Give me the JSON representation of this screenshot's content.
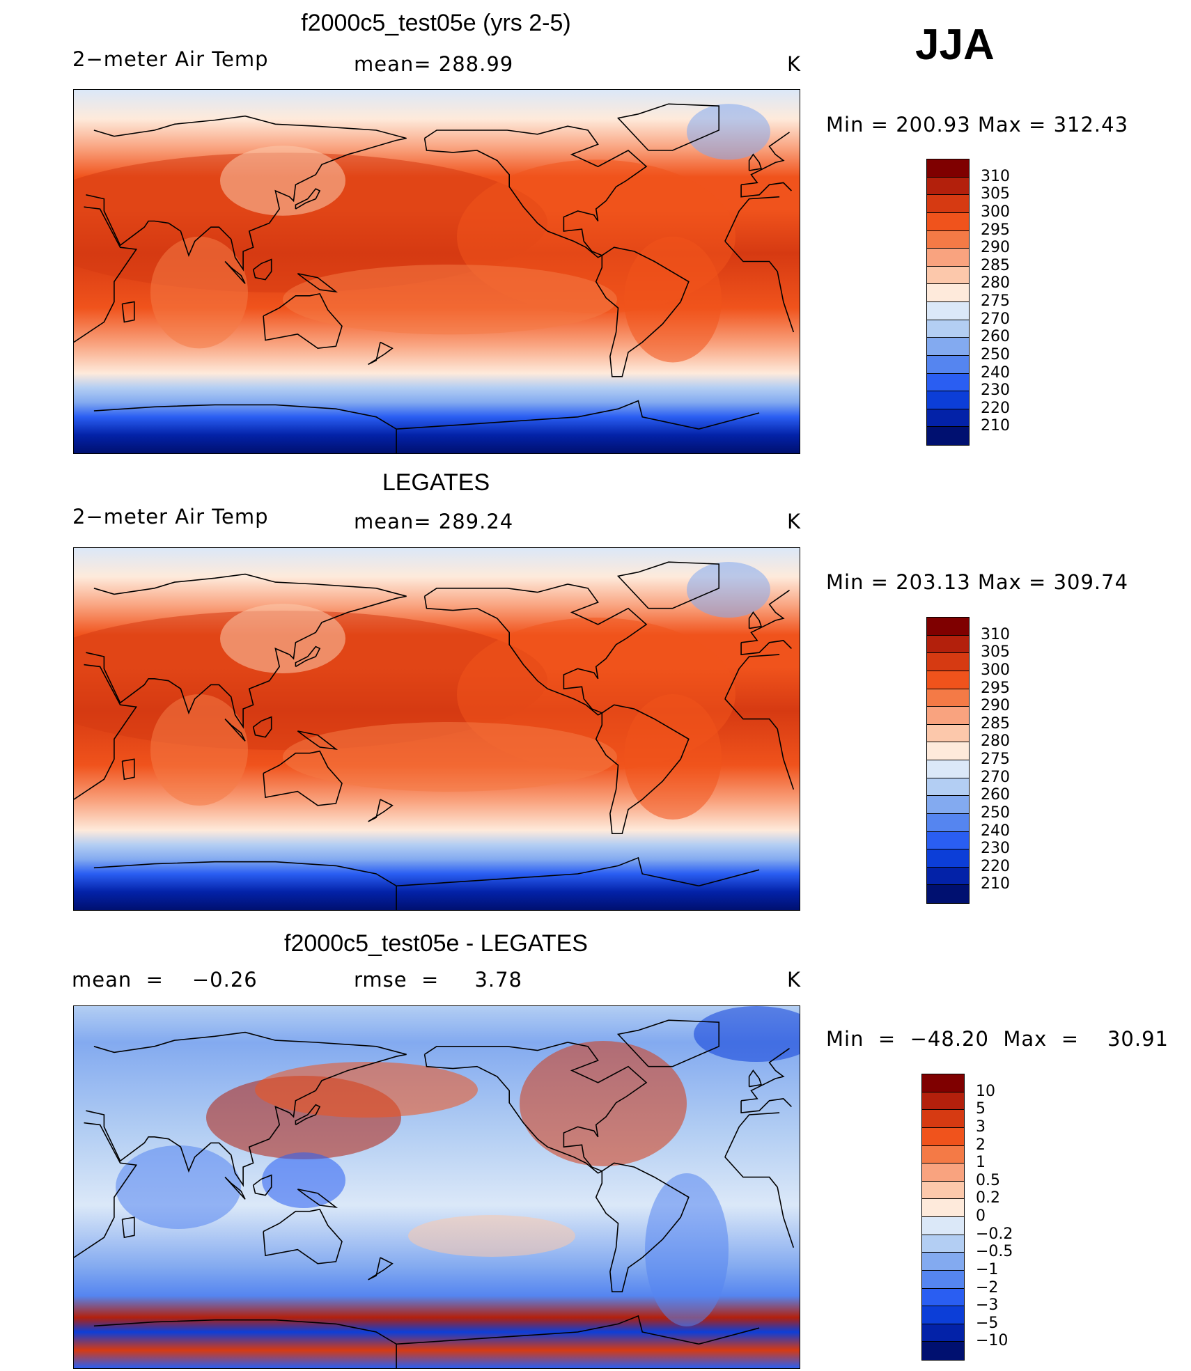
{
  "season": "JJA",
  "unit": "K",
  "panels": [
    {
      "title": "f2000c5_test05e (yrs 2-5)",
      "left_label": "2−meter Air Temp",
      "center_label": "mean=  288.99",
      "right_label": "K",
      "minmax": "Min  =  200.93  Max  =  312.43",
      "colorbar": {
        "labels": [
          "310",
          "305",
          "300",
          "295",
          "290",
          "285",
          "280",
          "275",
          "270",
          "260",
          "250",
          "240",
          "230",
          "220",
          "210"
        ],
        "colors": [
          "#7f0000",
          "#b3200c",
          "#d63a12",
          "#f0531c",
          "#f47a46",
          "#f9a37f",
          "#fcc8ab",
          "#feeadb",
          "#dbe8f8",
          "#b3cef3",
          "#83aaf0",
          "#5585f0",
          "#2a5ef2",
          "#0c3ed8",
          "#0322a8",
          "#001070"
        ]
      },
      "style": "model"
    },
    {
      "title": "LEGATES",
      "left_label": "2−meter Air Temp",
      "center_label": "mean=  289.24",
      "right_label": "K",
      "minmax": "Min  =  203.13  Max  =  309.74",
      "colorbar": {
        "labels": [
          "310",
          "305",
          "300",
          "295",
          "290",
          "285",
          "280",
          "275",
          "270",
          "260",
          "250",
          "240",
          "230",
          "220",
          "210"
        ],
        "colors": [
          "#7f0000",
          "#b3200c",
          "#d63a12",
          "#f0531c",
          "#f47a46",
          "#f9a37f",
          "#fcc8ab",
          "#feeadb",
          "#dbe8f8",
          "#b3cef3",
          "#83aaf0",
          "#5585f0",
          "#2a5ef2",
          "#0c3ed8",
          "#0322a8",
          "#001070"
        ]
      },
      "style": "obs"
    },
    {
      "title": "f2000c5_test05e - LEGATES",
      "left_label": "mean  =    −0.26",
      "center_label": "rmse  =     3.78",
      "right_label": "K",
      "minmax": "Min  =  −48.20  Max  =    30.91",
      "colorbar": {
        "labels": [
          "10",
          "5",
          "3",
          "2",
          "1",
          "0.5",
          "0.2",
          "0",
          "−0.2",
          "−0.5",
          "−1",
          "−2",
          "−3",
          "−5",
          "−10"
        ],
        "colors": [
          "#7f0000",
          "#b3200c",
          "#d63a12",
          "#f0531c",
          "#f47a46",
          "#f9a37f",
          "#fcc8ab",
          "#feeadb",
          "#dbe8f8",
          "#b3cef3",
          "#83aaf0",
          "#5585f0",
          "#2a5ef2",
          "#0c3ed8",
          "#0322a8",
          "#001070"
        ]
      },
      "style": "diff"
    }
  ]
}
